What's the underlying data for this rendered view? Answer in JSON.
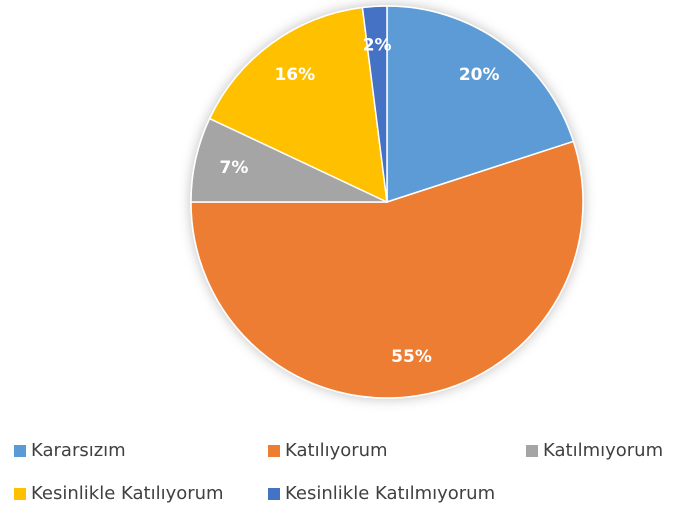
{
  "chart_data": {
    "type": "pie",
    "categories": [
      "Kararsızım",
      "Katılıyorum",
      "Katılmıyorum",
      "Kesinlikle Katılıyorum",
      "Kesinlikle Katılmıyorum"
    ],
    "values": [
      20,
      55,
      7,
      16,
      2
    ],
    "value_labels": [
      "20%",
      "55%",
      "7%",
      "16%",
      "2%"
    ],
    "colors": [
      "#5b9bd5",
      "#ed7d31",
      "#a5a5a5",
      "#ffc000",
      "#4472c4"
    ],
    "legend": "bottom"
  }
}
